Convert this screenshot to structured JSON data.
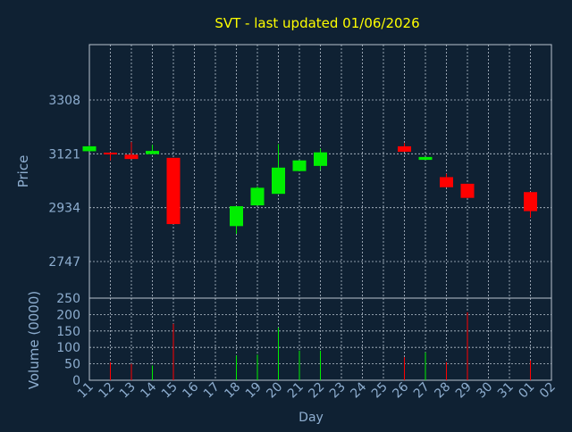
{
  "title": "SVT - last updated 01/06/2026",
  "colors": {
    "background": "#0f2133",
    "title": "#ffff00",
    "axis_text": "#8eaed0",
    "grid": "#b8c4cf",
    "up": "#00ee00",
    "down": "#ff0000",
    "frame": "#b8c4cf"
  },
  "chart_data": [
    {
      "type": "candlestick",
      "ylabel": "Price",
      "ylim": [
        2620,
        3500
      ],
      "yticks": [
        2747,
        2934,
        3121,
        3308
      ],
      "grid": true,
      "x_days": [
        "11",
        "12",
        "13",
        "14",
        "15",
        "16",
        "17",
        "18",
        "19",
        "20",
        "21",
        "22",
        "23",
        "24",
        "25",
        "26",
        "27",
        "28",
        "29",
        "30",
        "31",
        "01",
        "02"
      ],
      "candles": [
        {
          "day": "11",
          "open": 3130,
          "close": 3147,
          "high": 3150,
          "low": 3130
        },
        {
          "day": "12",
          "open": 3125,
          "close": 3120,
          "high": 3126,
          "low": 3098
        },
        {
          "day": "13",
          "open": 3118,
          "close": 3103,
          "high": 3162,
          "low": 3103
        },
        {
          "day": "14",
          "open": 3120,
          "close": 3131,
          "high": 3152,
          "low": 3120
        },
        {
          "day": "15",
          "open": 3107,
          "close": 2877,
          "high": 3107,
          "low": 2877
        },
        {
          "day": "18",
          "open": 2870,
          "close": 2939,
          "high": 2939,
          "low": 2843
        },
        {
          "day": "19",
          "open": 2942,
          "close": 3003,
          "high": 3008,
          "low": 2942
        },
        {
          "day": "20",
          "open": 2982,
          "close": 3073,
          "high": 3155,
          "low": 2982
        },
        {
          "day": "21",
          "open": 3061,
          "close": 3098,
          "high": 3098,
          "low": 3061
        },
        {
          "day": "22",
          "open": 3079,
          "close": 3126,
          "high": 3139,
          "low": 3065
        },
        {
          "day": "26",
          "open": 3147,
          "close": 3128,
          "high": 3158,
          "low": 3128
        },
        {
          "day": "27",
          "open": 3100,
          "close": 3110,
          "high": 3110,
          "low": 3100
        },
        {
          "day": "28",
          "open": 3040,
          "close": 3005,
          "high": 3052,
          "low": 3005
        },
        {
          "day": "29",
          "open": 3017,
          "close": 2968,
          "high": 3017,
          "low": 2968
        },
        {
          "day": "01",
          "open": 2988,
          "close": 2922,
          "high": 2988,
          "low": 2900
        }
      ]
    },
    {
      "type": "bar",
      "ylabel": "Volume (0000)",
      "xlabel": "Day",
      "ylim": [
        0,
        250
      ],
      "yticks": [
        0,
        50,
        100,
        150,
        200,
        250
      ],
      "grid": true,
      "bars": [
        {
          "day": "12",
          "value": 55,
          "color": "down"
        },
        {
          "day": "13",
          "value": 50,
          "color": "down"
        },
        {
          "day": "14",
          "value": 45,
          "color": "up"
        },
        {
          "day": "15",
          "value": 172,
          "color": "down"
        },
        {
          "day": "18",
          "value": 75,
          "color": "up"
        },
        {
          "day": "19",
          "value": 78,
          "color": "up"
        },
        {
          "day": "20",
          "value": 160,
          "color": "up"
        },
        {
          "day": "21",
          "value": 90,
          "color": "up"
        },
        {
          "day": "22",
          "value": 90,
          "color": "up"
        },
        {
          "day": "26",
          "value": 70,
          "color": "down"
        },
        {
          "day": "27",
          "value": 85,
          "color": "up"
        },
        {
          "day": "28",
          "value": 55,
          "color": "down"
        },
        {
          "day": "29",
          "value": 207,
          "color": "down"
        },
        {
          "day": "01",
          "value": 60,
          "color": "down"
        }
      ]
    }
  ]
}
